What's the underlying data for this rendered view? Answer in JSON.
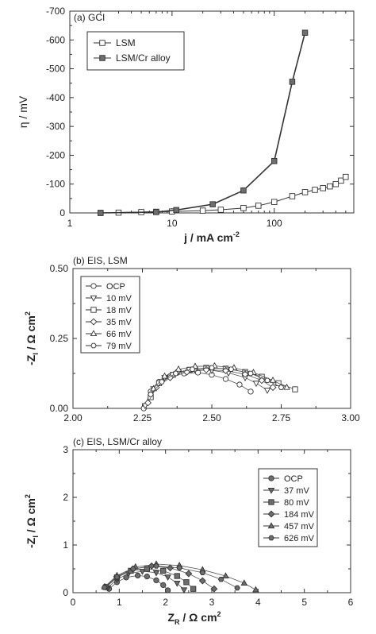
{
  "chart_data": [
    {
      "panel": "a",
      "type": "line",
      "title": "(a) GCI",
      "xlabel": "j / mA cm",
      "xlabel_sup": "-2",
      "ylabel": "η / mV",
      "xscale": "log",
      "xlim": [
        1,
        600
      ],
      "ylim": [
        0,
        -700
      ],
      "yticks": [
        0,
        -100,
        -200,
        -300,
        -400,
        -500,
        -600,
        -700
      ],
      "ytick_labels": [
        "0",
        "-100",
        "-200",
        "-300",
        "-400",
        "-500",
        "-600",
        "-700"
      ],
      "xticks": [
        1,
        10,
        100
      ],
      "xtick_labels": [
        "1",
        "10",
        "100"
      ],
      "grid": false,
      "legend_position": "top-left",
      "series": [
        {
          "name": "LSM",
          "marker": "open-square",
          "x": [
            2,
            3,
            5,
            7,
            10,
            20,
            30,
            50,
            70,
            100,
            150,
            200,
            250,
            300,
            350,
            400,
            450,
            500
          ],
          "y": [
            0,
            -1,
            -3,
            -4,
            -5,
            -8,
            -11,
            -17,
            -25,
            -38,
            -58,
            -72,
            -80,
            -86,
            -92,
            -100,
            -112,
            -125
          ]
        },
        {
          "name": "LSM/Cr alloy",
          "marker": "filled-square",
          "x": [
            2,
            7,
            11,
            25,
            50,
            100,
            150,
            200
          ],
          "y": [
            0,
            -3,
            -10,
            -30,
            -78,
            -180,
            -455,
            -625
          ]
        }
      ]
    },
    {
      "panel": "b",
      "type": "scatter",
      "title": "(b) EIS, LSM",
      "xlabel": "",
      "ylabel": "-Z",
      "ylabel_sub": "I",
      "ylabel_rest": " / Ω cm",
      "ylabel_sup": "2",
      "xlim": [
        2.0,
        3.0
      ],
      "ylim": [
        0,
        0.5
      ],
      "xticks": [
        2.0,
        2.25,
        2.5,
        2.75,
        3.0
      ],
      "xtick_labels": [
        "2.00",
        "2.25",
        "2.50",
        "2.75",
        "3.00"
      ],
      "yticks": [
        0,
        0.25,
        0.5
      ],
      "ytick_labels": [
        "0.00",
        "0.25",
        "0.50"
      ],
      "grid": false,
      "legend_position": "top-left",
      "series": [
        {
          "name": "OCP",
          "marker": "open-circle",
          "x": [
            2.255,
            2.28,
            2.31,
            2.35,
            2.4,
            2.45,
            2.5,
            2.55,
            2.6,
            2.64
          ],
          "y": [
            0.0,
            0.06,
            0.095,
            0.115,
            0.125,
            0.128,
            0.12,
            0.105,
            0.085,
            0.06
          ]
        },
        {
          "name": "10 mV",
          "marker": "open-triangle-down",
          "x": [
            2.26,
            2.29,
            2.33,
            2.38,
            2.44,
            2.5,
            2.56,
            2.62,
            2.66,
            2.7
          ],
          "y": [
            0.01,
            0.07,
            0.11,
            0.13,
            0.138,
            0.136,
            0.127,
            0.11,
            0.09,
            0.065
          ]
        },
        {
          "name": "18 mV",
          "marker": "open-square",
          "x": [
            2.28,
            2.31,
            2.36,
            2.42,
            2.48,
            2.55,
            2.62,
            2.68,
            2.74,
            2.8
          ],
          "y": [
            0.04,
            0.09,
            0.12,
            0.138,
            0.145,
            0.142,
            0.13,
            0.113,
            0.09,
            0.068
          ]
        },
        {
          "name": "35 mV",
          "marker": "open-diamond",
          "x": [
            2.27,
            2.3,
            2.35,
            2.41,
            2.48,
            2.55,
            2.62,
            2.68,
            2.72
          ],
          "y": [
            0.02,
            0.075,
            0.11,
            0.13,
            0.138,
            0.135,
            0.122,
            0.1,
            0.075
          ]
        },
        {
          "name": "66 mV",
          "marker": "open-triangle-up",
          "x": [
            2.29,
            2.33,
            2.38,
            2.44,
            2.51,
            2.58,
            2.65,
            2.72,
            2.77
          ],
          "y": [
            0.07,
            0.115,
            0.14,
            0.15,
            0.152,
            0.145,
            0.128,
            0.1,
            0.075
          ]
        },
        {
          "name": "79 mV",
          "marker": "open-hexagon",
          "x": [
            2.28,
            2.32,
            2.37,
            2.43,
            2.5,
            2.57,
            2.64,
            2.7,
            2.75
          ],
          "y": [
            0.05,
            0.095,
            0.125,
            0.14,
            0.145,
            0.14,
            0.125,
            0.1,
            0.075
          ]
        }
      ]
    },
    {
      "panel": "c",
      "type": "scatter",
      "title": "(c) EIS, LSM/Cr alloy",
      "xlabel": "Z",
      "xlabel_sub": "R",
      "xlabel_rest": " / Ω cm",
      "xlabel_sup": "2",
      "ylabel": "-Z",
      "ylabel_sub": "I",
      "ylabel_rest": " / Ω cm",
      "ylabel_sup": "2",
      "xlim": [
        0,
        6
      ],
      "ylim": [
        0,
        3
      ],
      "xticks": [
        0,
        1,
        2,
        3,
        4,
        5,
        6
      ],
      "xtick_labels": [
        "0",
        "1",
        "2",
        "3",
        "4",
        "5",
        "6"
      ],
      "yticks": [
        0,
        1,
        2,
        3
      ],
      "ytick_labels": [
        "0",
        "1",
        "2",
        "3"
      ],
      "grid": false,
      "legend_position": "right",
      "series": [
        {
          "name": "OCP",
          "marker": "filled-circle",
          "x": [
            0.78,
            0.95,
            1.15,
            1.4,
            1.6,
            1.8,
            1.95,
            2.05
          ],
          "y": [
            0.08,
            0.22,
            0.32,
            0.36,
            0.34,
            0.26,
            0.16,
            0.05
          ]
        },
        {
          "name": "37 mV",
          "marker": "filled-triangle-down",
          "x": [
            0.75,
            0.95,
            1.2,
            1.5,
            1.8,
            2.05,
            2.25,
            2.4
          ],
          "y": [
            0.1,
            0.28,
            0.4,
            0.45,
            0.42,
            0.33,
            0.2,
            0.06
          ]
        },
        {
          "name": "80 mV",
          "marker": "filled-square",
          "x": [
            0.72,
            0.95,
            1.25,
            1.6,
            1.95,
            2.25,
            2.45,
            2.6
          ],
          "y": [
            0.12,
            0.32,
            0.46,
            0.5,
            0.46,
            0.35,
            0.22,
            0.08
          ]
        },
        {
          "name": "184 mV",
          "marker": "filled-diamond",
          "x": [
            0.7,
            0.95,
            1.3,
            1.7,
            2.1,
            2.5,
            2.8,
            3.05
          ],
          "y": [
            0.12,
            0.34,
            0.5,
            0.56,
            0.52,
            0.4,
            0.25,
            0.08
          ]
        },
        {
          "name": "457 mV",
          "marker": "filled-triangle-up",
          "x": [
            0.68,
            0.95,
            1.35,
            1.8,
            2.3,
            2.8,
            3.3,
            3.7,
            3.95
          ],
          "y": [
            0.12,
            0.36,
            0.54,
            0.6,
            0.57,
            0.48,
            0.35,
            0.2,
            0.06
          ]
        },
        {
          "name": "626 mV",
          "marker": "filled-hexagon",
          "x": [
            0.68,
            0.95,
            1.3,
            1.8,
            2.3,
            2.8,
            3.2,
            3.55
          ],
          "y": [
            0.11,
            0.33,
            0.5,
            0.56,
            0.52,
            0.42,
            0.28,
            0.1
          ]
        }
      ]
    }
  ]
}
